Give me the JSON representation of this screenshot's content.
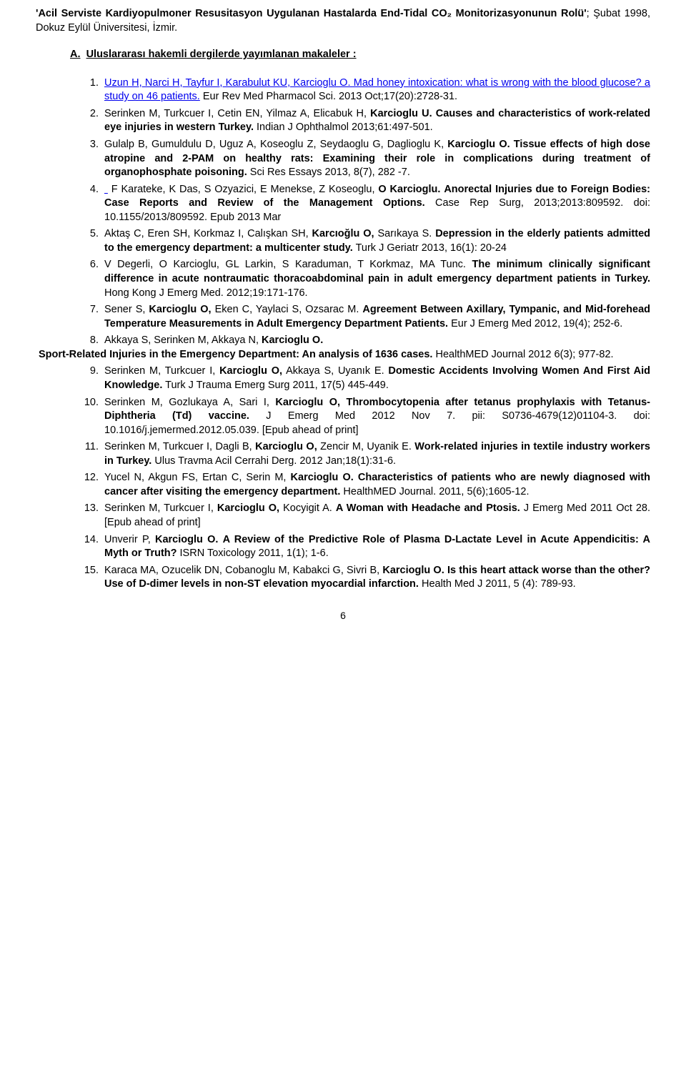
{
  "thesis": {
    "title_bold": "'Acil Serviste Kardiyopulmoner Resusitasyon Uygulanan Hastalarda End-Tidal CO₂ Monitorizasyonunun Rolü'",
    "title_rest": "; Şubat 1998, Dokuz Eylül Üniversitesi, İzmir."
  },
  "section": {
    "prefix": "A.",
    "heading": "Uluslararası hakemli dergilerde yayımlanan makaleler :"
  },
  "refs": [
    {
      "n": "1",
      "link_part": "Uzun H, Narci H, Tayfur I, Karabulut KU, Karcioglu O. Mad honey intoxication: what is wrong with the blood glucose? a study on 46 patients.",
      "tail": " Eur Rev Med Pharmacol Sci. 2013 Oct;17(20):2728-31."
    },
    {
      "n": "2",
      "authors": "Serinken M, Turkcuer I, Cetin EN, Yilmaz A, Elicabuk H, ",
      "bold1": "Karcioglu U.",
      "mid": " ",
      "bold2": "Causes and characteristics of work-related eye injuries in western Turkey.",
      "tail": " Indian J Ophthalmol 2013;61:497-501."
    },
    {
      "n": "3",
      "authors": "Gulalp B, Gumuldulu D, Uguz A, Koseoglu Z, Seydaoglu G, Daglioglu K, ",
      "bold1": "Karcioglu O.",
      "mid": " ",
      "bold2": "Tissue effects of high dose atropine and 2-PAM on healthy rats: Examining their role in complications during treatment of organophosphate poisoning.",
      "tail": " Sci Res Essays  2013, 8(7), 282 -7."
    },
    {
      "n": "4",
      "authors": " F Karateke, K Das, S Ozyazici, E Menekse, Z Koseoglu, ",
      "bold1": "O Karcioglu.",
      "mid": " ",
      "bold2": "Anorectal Injuries due to Foreign Bodies: Case Reports and Review of the Management Options.",
      "tail": " Case Rep Surg, 2013;2013:809592. doi: 10.1155/2013/809592. Epub 2013 Mar"
    },
    {
      "n": "5",
      "authors": "Aktaş C, Eren SH, Korkmaz I, Calışkan SH, ",
      "bold1": "Karcıoğlu O,",
      "mid": " Sarıkaya S. ",
      "bold2": "Depression in the elderly patients admitted to the emergency department: a multicenter study.",
      "tail": " Turk J Geriatr 2013, 16(1): 20-24"
    },
    {
      "n": "6",
      "authors": "V Degerli, O Karcioglu, GL Larkin, S Karaduman, T Korkmaz, MA Tunc. ",
      "bold1": "",
      "mid": "",
      "bold2": "The minimum clinically significant difference in acute nontraumatic thoracoabdominal pain in adult emergency department patients in Turkey.",
      "tail": " Hong Kong J Emerg Med. 2012;19:171-176."
    },
    {
      "n": "7",
      "authors": "Sener S, ",
      "bold1": "Karcioglu O,",
      "mid": " Eken C, Yaylaci S, Ozsarac M. ",
      "bold2": "Agreement Between Axillary, Tympanic, and Mid-forehead Temperature Measurements in Adult Emergency Department Patients.",
      "tail": " Eur J Emerg Med 2012, 19(4); 252-6."
    },
    {
      "n": "8",
      "outdent": true,
      "pre": "Akkaya S, Serinken M, Akkaya N, ",
      "bold1": "Karcioglu O.",
      "mid": " ",
      "bold2_out": "Sport-Related Injuries in the Emergency Department: An analysis of 1636 cases.",
      "tail_out": " HealthMED Journal 2012 6(3); 977-82."
    },
    {
      "n": "9",
      "authors": "Serinken M, Turkcuer I, ",
      "bold1": "Karcioglu O,",
      "mid": " Akkaya S, Uyanık E. ",
      "bold2": "Domestic Accidents Involving Women And First Aid Knowledge.",
      "tail": " Turk J Trauma Emerg Surg 2011, 17(5) 445-449."
    },
    {
      "n": "10",
      "authors": "Serinken M, Gozlukaya A, Sari I, ",
      "bold1": "Karcioglu O,",
      "mid": " ",
      "bold2": "Thrombocytopenia after tetanus prophylaxis with Tetanus-Diphtheria (Td) vaccine.",
      "tail": " J Emerg Med 2012 Nov 7. pii: S0736-4679(12)01104-3. doi: 10.1016/j.jemermed.2012.05.039. [Epub ahead of print]"
    },
    {
      "n": "11",
      "authors": "Serinken M, Turkcuer I, Dagli B, ",
      "bold1": "Karcioglu O,",
      "mid": " Zencir M, Uyanik E. ",
      "bold2": "Work-related injuries in textile industry workers in Turkey.",
      "tail": " Ulus Travma Acil Cerrahi Derg. 2012 Jan;18(1):31-6."
    },
    {
      "n": "12",
      "authors": "Yucel N, Akgun FS, Ertan C, Serin M, ",
      "bold1": "Karcioglu O.",
      "mid": " ",
      "bold2": "Characteristics of patients who are newly diagnosed with cancer after visiting the emergency department.",
      "tail": " HealthMED Journal. 2011, 5(6);1605-12."
    },
    {
      "n": "13",
      "authors": "Serinken M, Turkcuer I, ",
      "bold1": "Karcioglu O,",
      "mid": " Kocyigit A. ",
      "bold2": "A Woman with Headache and Ptosis.",
      "tail": " J Emerg Med 2011 Oct 28. [Epub ahead of print]"
    },
    {
      "n": "14",
      "authors": "Unverir P, ",
      "bold1": "Karcioglu O.",
      "mid": " ",
      "bold2": "A Review of the Predictive Role of Plasma D-Lactate Level in Acute Appendicitis: A Myth or Truth?",
      "tail": " ISRN Toxicology 2011, 1(1); 1-6."
    },
    {
      "n": "15",
      "authors": "Karaca MA, Ozucelik DN, Cobanoglu M, Kabakci G, Sivri B, ",
      "bold1": "Karcioglu O.",
      "mid": " ",
      "bold2": "Is this heart attack worse than the other? Use of D-dimer levels in non-ST elevation myocardial infarction.",
      "tail": " Health Med J 2011, 5 (4): 789-93."
    }
  ],
  "page_number": "6"
}
